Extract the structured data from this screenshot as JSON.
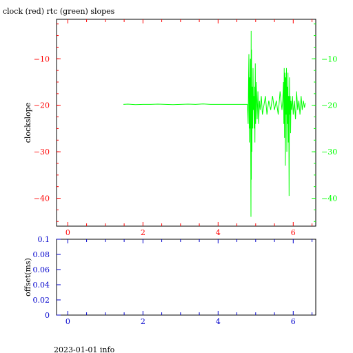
{
  "title": "clock (red) rtc (green) slopes",
  "footer": "2023-01-01 info",
  "colors": {
    "axis": "#000000",
    "red": "#ff0000",
    "green": "#00ff00",
    "blue": "#0000cc"
  },
  "chart_data": [
    {
      "type": "line",
      "title": "clock (red) rtc (green) slopes",
      "ylabel": "clockslope",
      "xlim": [
        -0.3,
        6.6
      ],
      "ylim": [
        -46,
        -1.5
      ],
      "x_ticks": [
        0,
        2,
        4,
        6
      ],
      "x_tick_labels": [
        "0",
        "2",
        "4",
        "6"
      ],
      "y_ticks": [
        -40,
        -30,
        -20,
        -10
      ],
      "y_tick_labels": [
        "−40",
        "−30",
        "−20",
        "−10"
      ],
      "grid": false,
      "series": [
        {
          "color": "#00ff00",
          "points": [
            [
              1.48,
              -19.8
            ],
            [
              1.6,
              -19.75
            ],
            [
              1.8,
              -19.85
            ],
            [
              2.0,
              -19.8
            ],
            [
              2.2,
              -19.8
            ],
            [
              2.4,
              -19.75
            ],
            [
              2.6,
              -19.8
            ],
            [
              2.8,
              -19.85
            ],
            [
              3.0,
              -19.8
            ],
            [
              3.2,
              -19.75
            ],
            [
              3.4,
              -19.8
            ],
            [
              3.6,
              -19.7
            ],
            [
              3.8,
              -19.8
            ],
            [
              4.0,
              -19.8
            ],
            [
              4.2,
              -19.8
            ],
            [
              4.4,
              -19.8
            ],
            [
              4.6,
              -19.8
            ],
            [
              4.78,
              -19.8
            ],
            [
              4.8,
              -24
            ],
            [
              4.81,
              -15
            ],
            [
              4.82,
              -9
            ],
            [
              4.83,
              -28
            ],
            [
              4.84,
              -14
            ],
            [
              4.85,
              -25
            ],
            [
              4.86,
              -10
            ],
            [
              4.87,
              -33
            ],
            [
              4.875,
              -44
            ],
            [
              4.88,
              -4
            ],
            [
              4.885,
              -36
            ],
            [
              4.89,
              -8
            ],
            [
              4.9,
              -30
            ],
            [
              4.91,
              -16
            ],
            [
              4.92,
              -25
            ],
            [
              4.93,
              -12
            ],
            [
              4.94,
              -21
            ],
            [
              4.95,
              -18
            ],
            [
              4.96,
              -25
            ],
            [
              4.97,
              -16
            ],
            [
              4.98,
              -28
            ],
            [
              4.99,
              -11
            ],
            [
              5.0,
              -24
            ],
            [
              5.02,
              -15
            ],
            [
              5.04,
              -23
            ],
            [
              5.06,
              -17
            ],
            [
              5.08,
              -24
            ],
            [
              5.1,
              -19
            ],
            [
              5.12,
              -21
            ],
            [
              5.15,
              -18
            ],
            [
              5.18,
              -22
            ],
            [
              5.22,
              -20
            ],
            [
              5.26,
              -18
            ],
            [
              5.3,
              -22
            ],
            [
              5.35,
              -19
            ],
            [
              5.4,
              -21
            ],
            [
              5.45,
              -18
            ],
            [
              5.5,
              -21
            ],
            [
              5.55,
              -19
            ],
            [
              5.6,
              -22
            ],
            [
              5.65,
              -17
            ],
            [
              5.7,
              -21
            ],
            [
              5.72,
              -19
            ],
            [
              5.74,
              -15
            ],
            [
              5.75,
              -24
            ],
            [
              5.76,
              -12
            ],
            [
              5.77,
              -27
            ],
            [
              5.78,
              -13
            ],
            [
              5.79,
              -33
            ],
            [
              5.8,
              -14
            ],
            [
              5.81,
              -22
            ],
            [
              5.82,
              -12
            ],
            [
              5.83,
              -30
            ],
            [
              5.84,
              -16
            ],
            [
              5.85,
              -24
            ],
            [
              5.86,
              -13
            ],
            [
              5.87,
              -28
            ],
            [
              5.88,
              -18
            ],
            [
              5.89,
              -39.5
            ],
            [
              5.9,
              -14
            ],
            [
              5.91,
              -22
            ],
            [
              5.92,
              -18
            ],
            [
              5.93,
              -26
            ],
            [
              5.94,
              -19
            ],
            [
              5.96,
              -21
            ],
            [
              5.98,
              -18
            ],
            [
              6.0,
              -22
            ],
            [
              6.03,
              -19
            ],
            [
              6.06,
              -23
            ],
            [
              6.09,
              -17
            ],
            [
              6.12,
              -21
            ],
            [
              6.15,
              -19
            ],
            [
              6.18,
              -22
            ],
            [
              6.21,
              -18
            ],
            [
              6.24,
              -21
            ],
            [
              6.27,
              -19
            ],
            [
              6.3,
              -20.5
            ],
            [
              6.32,
              -19.5
            ]
          ]
        }
      ]
    },
    {
      "type": "line",
      "ylabel": "offset(ms)",
      "xlim": [
        -0.3,
        6.6
      ],
      "ylim": [
        0,
        0.1
      ],
      "x_ticks": [
        0,
        2,
        4,
        6
      ],
      "x_tick_labels": [
        "0",
        "2",
        "4",
        "6"
      ],
      "y_ticks": [
        0,
        0.02,
        0.04,
        0.06,
        0.08,
        0.1
      ],
      "y_tick_labels": [
        "0",
        "0.02",
        "0.04",
        "0.06",
        "0.08",
        "0.1"
      ],
      "grid": false,
      "series": []
    }
  ]
}
